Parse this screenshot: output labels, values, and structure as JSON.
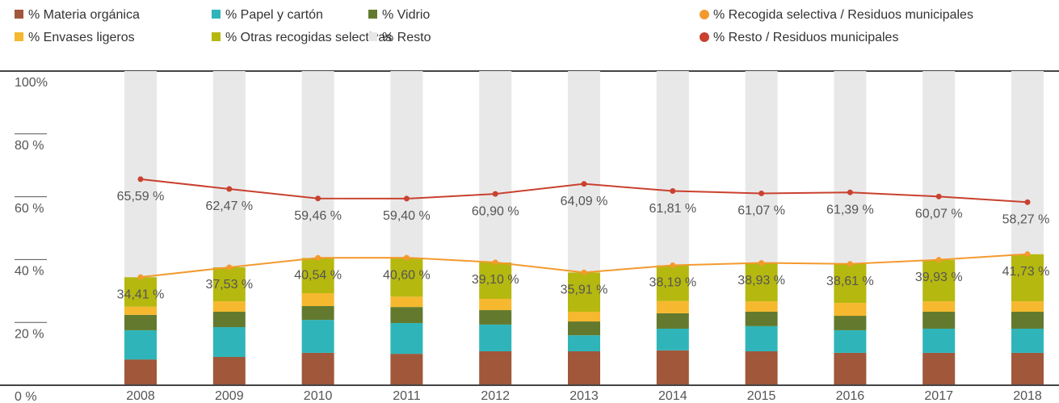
{
  "chart_data": {
    "type": "stacked_bar_line",
    "categories": [
      "2008",
      "2009",
      "2010",
      "2011",
      "2012",
      "2013",
      "2014",
      "2015",
      "2016",
      "2017",
      "2018"
    ],
    "series": [
      {
        "name": "% Materia orgánica",
        "color": "#a0573a",
        "kind": "bar",
        "values": [
          8.2,
          9.0,
          10.3,
          10.0,
          10.8,
          10.8,
          11.1,
          10.8,
          10.3,
          10.3,
          10.3
        ]
      },
      {
        "name": "% Papel y cartón",
        "color": "#2fb5b9",
        "kind": "bar",
        "values": [
          9.3,
          9.5,
          10.5,
          9.8,
          8.5,
          5.1,
          6.9,
          8.0,
          7.2,
          7.7,
          7.7
        ]
      },
      {
        "name": "% Vidrio",
        "color": "#637a2e",
        "kind": "bar",
        "values": [
          4.9,
          4.9,
          4.4,
          5.1,
          4.6,
          4.4,
          4.9,
          4.6,
          4.6,
          5.4,
          5.4
        ]
      },
      {
        "name": "% Envases ligeros",
        "color": "#f5b82e",
        "kind": "bar",
        "values": [
          2.6,
          3.3,
          4.1,
          3.3,
          3.6,
          3.1,
          3.9,
          3.3,
          4.1,
          3.3,
          3.3
        ]
      },
      {
        "name": "% Otras recogidas selectivas",
        "color": "#b5b80f",
        "kind": "bar",
        "values": [
          9.41,
          10.83,
          11.24,
          12.4,
          11.6,
          12.51,
          11.39,
          12.23,
          12.41,
          13.23,
          15.03
        ]
      },
      {
        "name": "% Resto",
        "color": "#e8e8e8",
        "kind": "bar",
        "values": [
          65.59,
          62.47,
          59.46,
          59.4,
          60.9,
          64.09,
          61.81,
          61.07,
          61.39,
          60.07,
          58.27
        ]
      },
      {
        "name": "% Recogida selectiva / Residuos municipales",
        "color": "#f39a2e",
        "kind": "line",
        "values": [
          34.41,
          37.53,
          40.54,
          40.6,
          39.1,
          35.91,
          38.19,
          38.93,
          38.61,
          39.93,
          41.73
        ],
        "value_labels": [
          "34,41 %",
          "37,53 %",
          "40,54 %",
          "40,60 %",
          "39,10 %",
          "35,91 %",
          "38,19 %",
          "38,93 %",
          "38,61 %",
          "39,93 %",
          "41,73 %"
        ]
      },
      {
        "name": "% Resto / Residuos municipales",
        "color": "#c9412f",
        "kind": "line",
        "values": [
          65.59,
          62.47,
          59.46,
          59.4,
          60.9,
          64.09,
          61.81,
          61.07,
          61.39,
          60.07,
          58.27
        ],
        "value_labels": [
          "65,59 %",
          "62,47 %",
          "59,46 %",
          "59,40 %",
          "60,90 %",
          "64,09 %",
          "61,81 %",
          "61,07 %",
          "61,39 %",
          "60,07 %",
          "58,27 %"
        ]
      }
    ],
    "legend_order": [
      0,
      3,
      1,
      4,
      2,
      5,
      6,
      7
    ],
    "ylim": [
      0,
      100
    ],
    "yticks": [
      {
        "value": 0,
        "label": "0 %"
      },
      {
        "value": 20,
        "label": "20 %"
      },
      {
        "value": 40,
        "label": "40 %"
      },
      {
        "value": 60,
        "label": "60 %"
      },
      {
        "value": 80,
        "label": "80 %"
      },
      {
        "value": 100,
        "label": "100%"
      }
    ]
  }
}
